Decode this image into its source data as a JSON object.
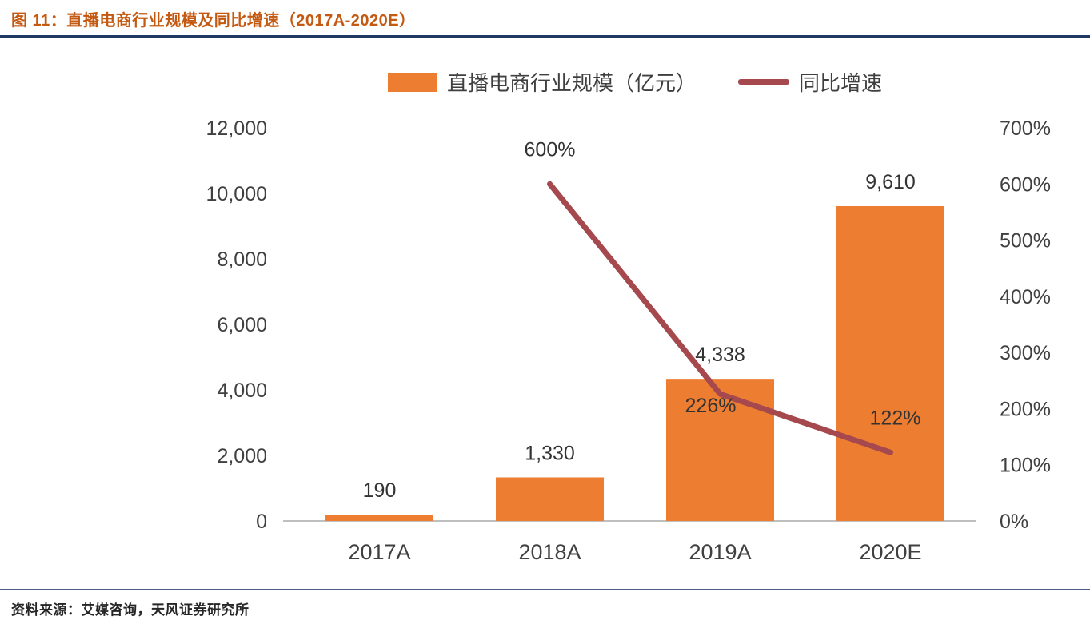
{
  "header": {
    "title": "图 11：直播电商行业规模及同比增速（2017A-2020E）"
  },
  "legend": {
    "bars_label": "直播电商行业规模（亿元）",
    "line_label": "同比增速"
  },
  "footer": {
    "source": "资料来源：艾媒咨询，天风证券研究所"
  },
  "colors": {
    "bar": "#ED7D31",
    "line": "#A5494E",
    "title": "#C45911",
    "rule": "#1F3864",
    "axis_text": "#404040",
    "baseline": "#BFBFBF"
  },
  "chart_data": {
    "type": "bar",
    "subtype": "bar+line combo, dual axis",
    "categories": [
      "2017A",
      "2018A",
      "2019A",
      "2020E"
    ],
    "series": [
      {
        "name": "直播电商行业规模（亿元）",
        "type": "bar",
        "axis": "left",
        "values": [
          190,
          1330,
          4338,
          9610
        ],
        "labels": [
          "190",
          "1,330",
          "4,338",
          "9,610"
        ]
      },
      {
        "name": "同比增速",
        "type": "line",
        "axis": "right",
        "values": [
          null,
          600,
          226,
          122
        ],
        "labels": [
          null,
          "600%",
          "226%",
          "122%"
        ],
        "label_offsets": [
          null,
          [
            0,
            -44
          ],
          [
            -12,
            14
          ],
          [
            6,
            -44
          ]
        ]
      }
    ],
    "left_axis": {
      "min": 0,
      "max": 12000,
      "tick_values": [
        0,
        2000,
        4000,
        6000,
        8000,
        10000,
        12000
      ],
      "tick_labels": [
        "0",
        "2,000",
        "4,000",
        "6,000",
        "8,000",
        "10,000",
        "12,000"
      ]
    },
    "right_axis": {
      "min": 0,
      "max": 700,
      "tick_values": [
        0,
        100,
        200,
        300,
        400,
        500,
        600,
        700
      ],
      "tick_labels": [
        "0%",
        "100%",
        "200%",
        "300%",
        "400%",
        "500%",
        "600%",
        "700%"
      ]
    },
    "grid": false,
    "legend_position": "top"
  }
}
